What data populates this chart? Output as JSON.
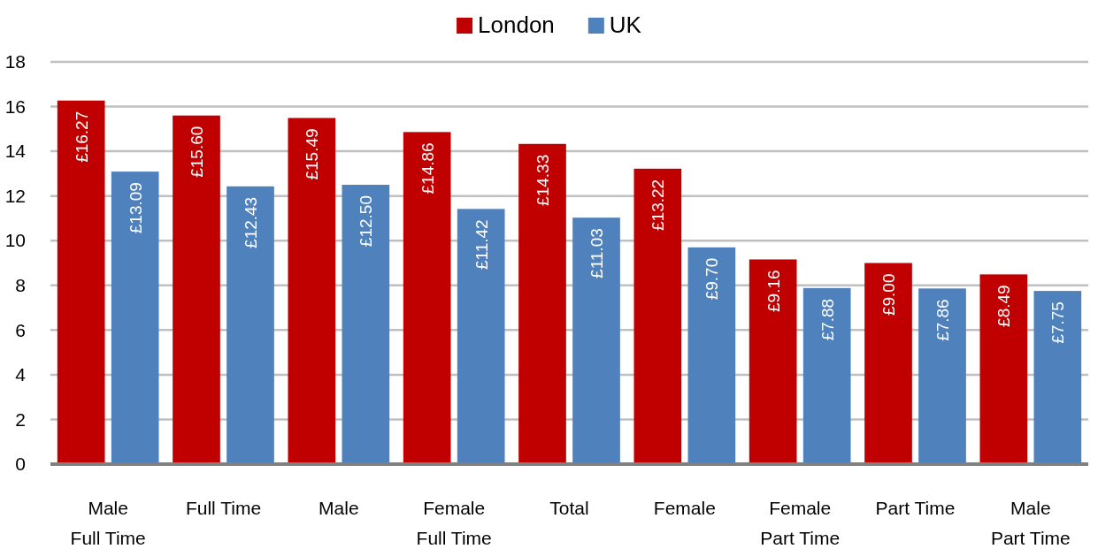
{
  "chart_data": {
    "type": "bar",
    "categories": [
      "Male\nFull Time",
      "Full Time",
      "Male",
      "Female\nFull Time",
      "Total",
      "Female",
      "Female\nPart Time",
      "Part Time",
      "Male\nPart Time"
    ],
    "series": [
      {
        "name": "London",
        "color": "#c00000",
        "values": [
          16.27,
          15.6,
          15.49,
          14.86,
          14.33,
          13.22,
          9.16,
          9.0,
          8.49
        ],
        "value_labels": [
          "£16.27",
          "£15.60",
          "£15.49",
          "£14.86",
          "£14.33",
          "£13.22",
          "£9.16",
          "£9.00",
          "£8.49"
        ]
      },
      {
        "name": "UK",
        "color": "#4f81bd",
        "values": [
          13.09,
          12.43,
          12.5,
          11.42,
          11.03,
          9.7,
          7.88,
          7.86,
          7.75
        ],
        "value_labels": [
          "£13.09",
          "£12.43",
          "£12.50",
          "£11.42",
          "£11.03",
          "£9.70",
          "£7.88",
          "£7.86",
          "£7.75"
        ]
      }
    ],
    "ylim": [
      0,
      18
    ],
    "yticks": [
      0,
      2,
      4,
      6,
      8,
      10,
      12,
      14,
      16,
      18
    ],
    "grid": "y",
    "legend": "top"
  }
}
